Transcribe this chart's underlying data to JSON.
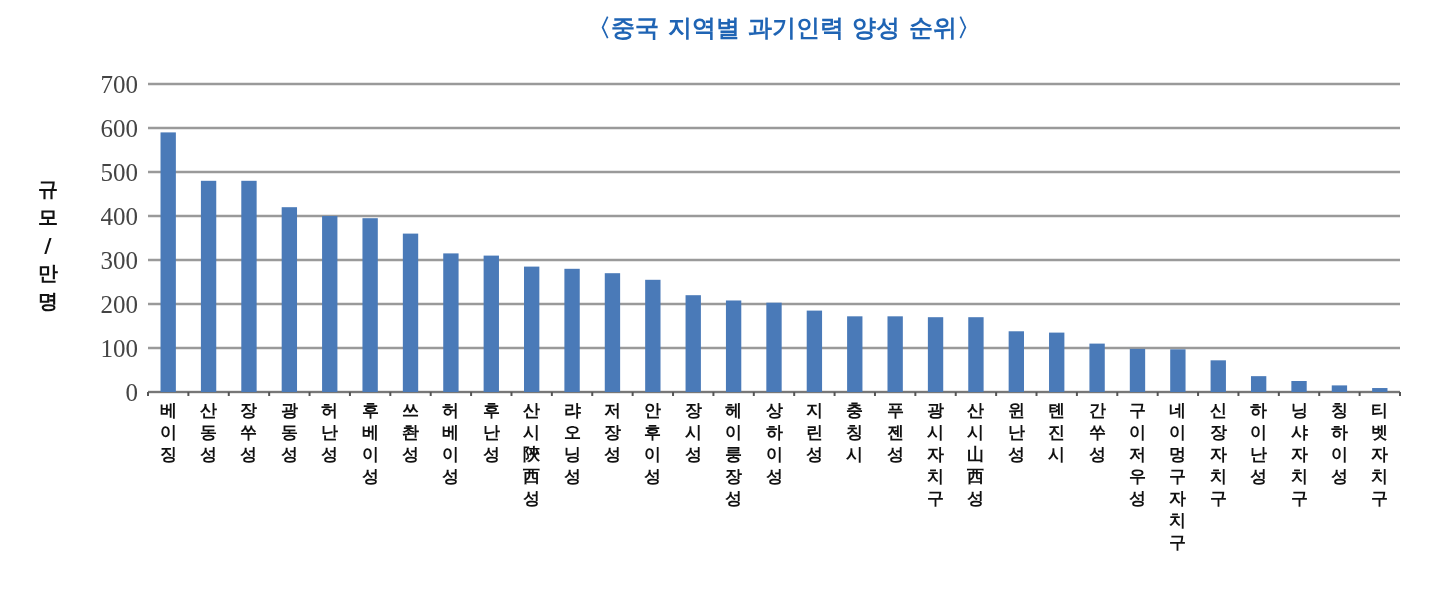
{
  "chart_data": {
    "type": "bar",
    "title": "〈중국 지역별 과기인력 양성 순위〉",
    "ylabel": "규모/만명",
    "categories": [
      "베이징",
      "산동성",
      "장쑤성",
      "광동성",
      "허난성",
      "후베이성",
      "쓰촨성",
      "허베이성",
      "후난성",
      "산시陝西성",
      "랴오닝성",
      "저장성",
      "안후이성",
      "장시성",
      "헤이룽장성",
      "상하이성",
      "지린성",
      "충칭시",
      "푸젠성",
      "광시자치구",
      "산시山西성",
      "윈난성",
      "톈진시",
      "간쑤성",
      "구이저우성",
      "네이멍구자치구",
      "신장자치구",
      "하이난성",
      "닝샤자치구",
      "칭하이성",
      "티벳자치구"
    ],
    "values": [
      590,
      480,
      480,
      420,
      400,
      395,
      360,
      315,
      310,
      285,
      280,
      270,
      255,
      220,
      208,
      203,
      185,
      172,
      172,
      170,
      170,
      138,
      135,
      110,
      98,
      97,
      72,
      36,
      25,
      15,
      9
    ],
    "color": "#4a7ab8",
    "ylim": [
      0,
      700
    ],
    "yticks": [
      0,
      100,
      200,
      300,
      400,
      500,
      600,
      700
    ],
    "grid": "y"
  }
}
